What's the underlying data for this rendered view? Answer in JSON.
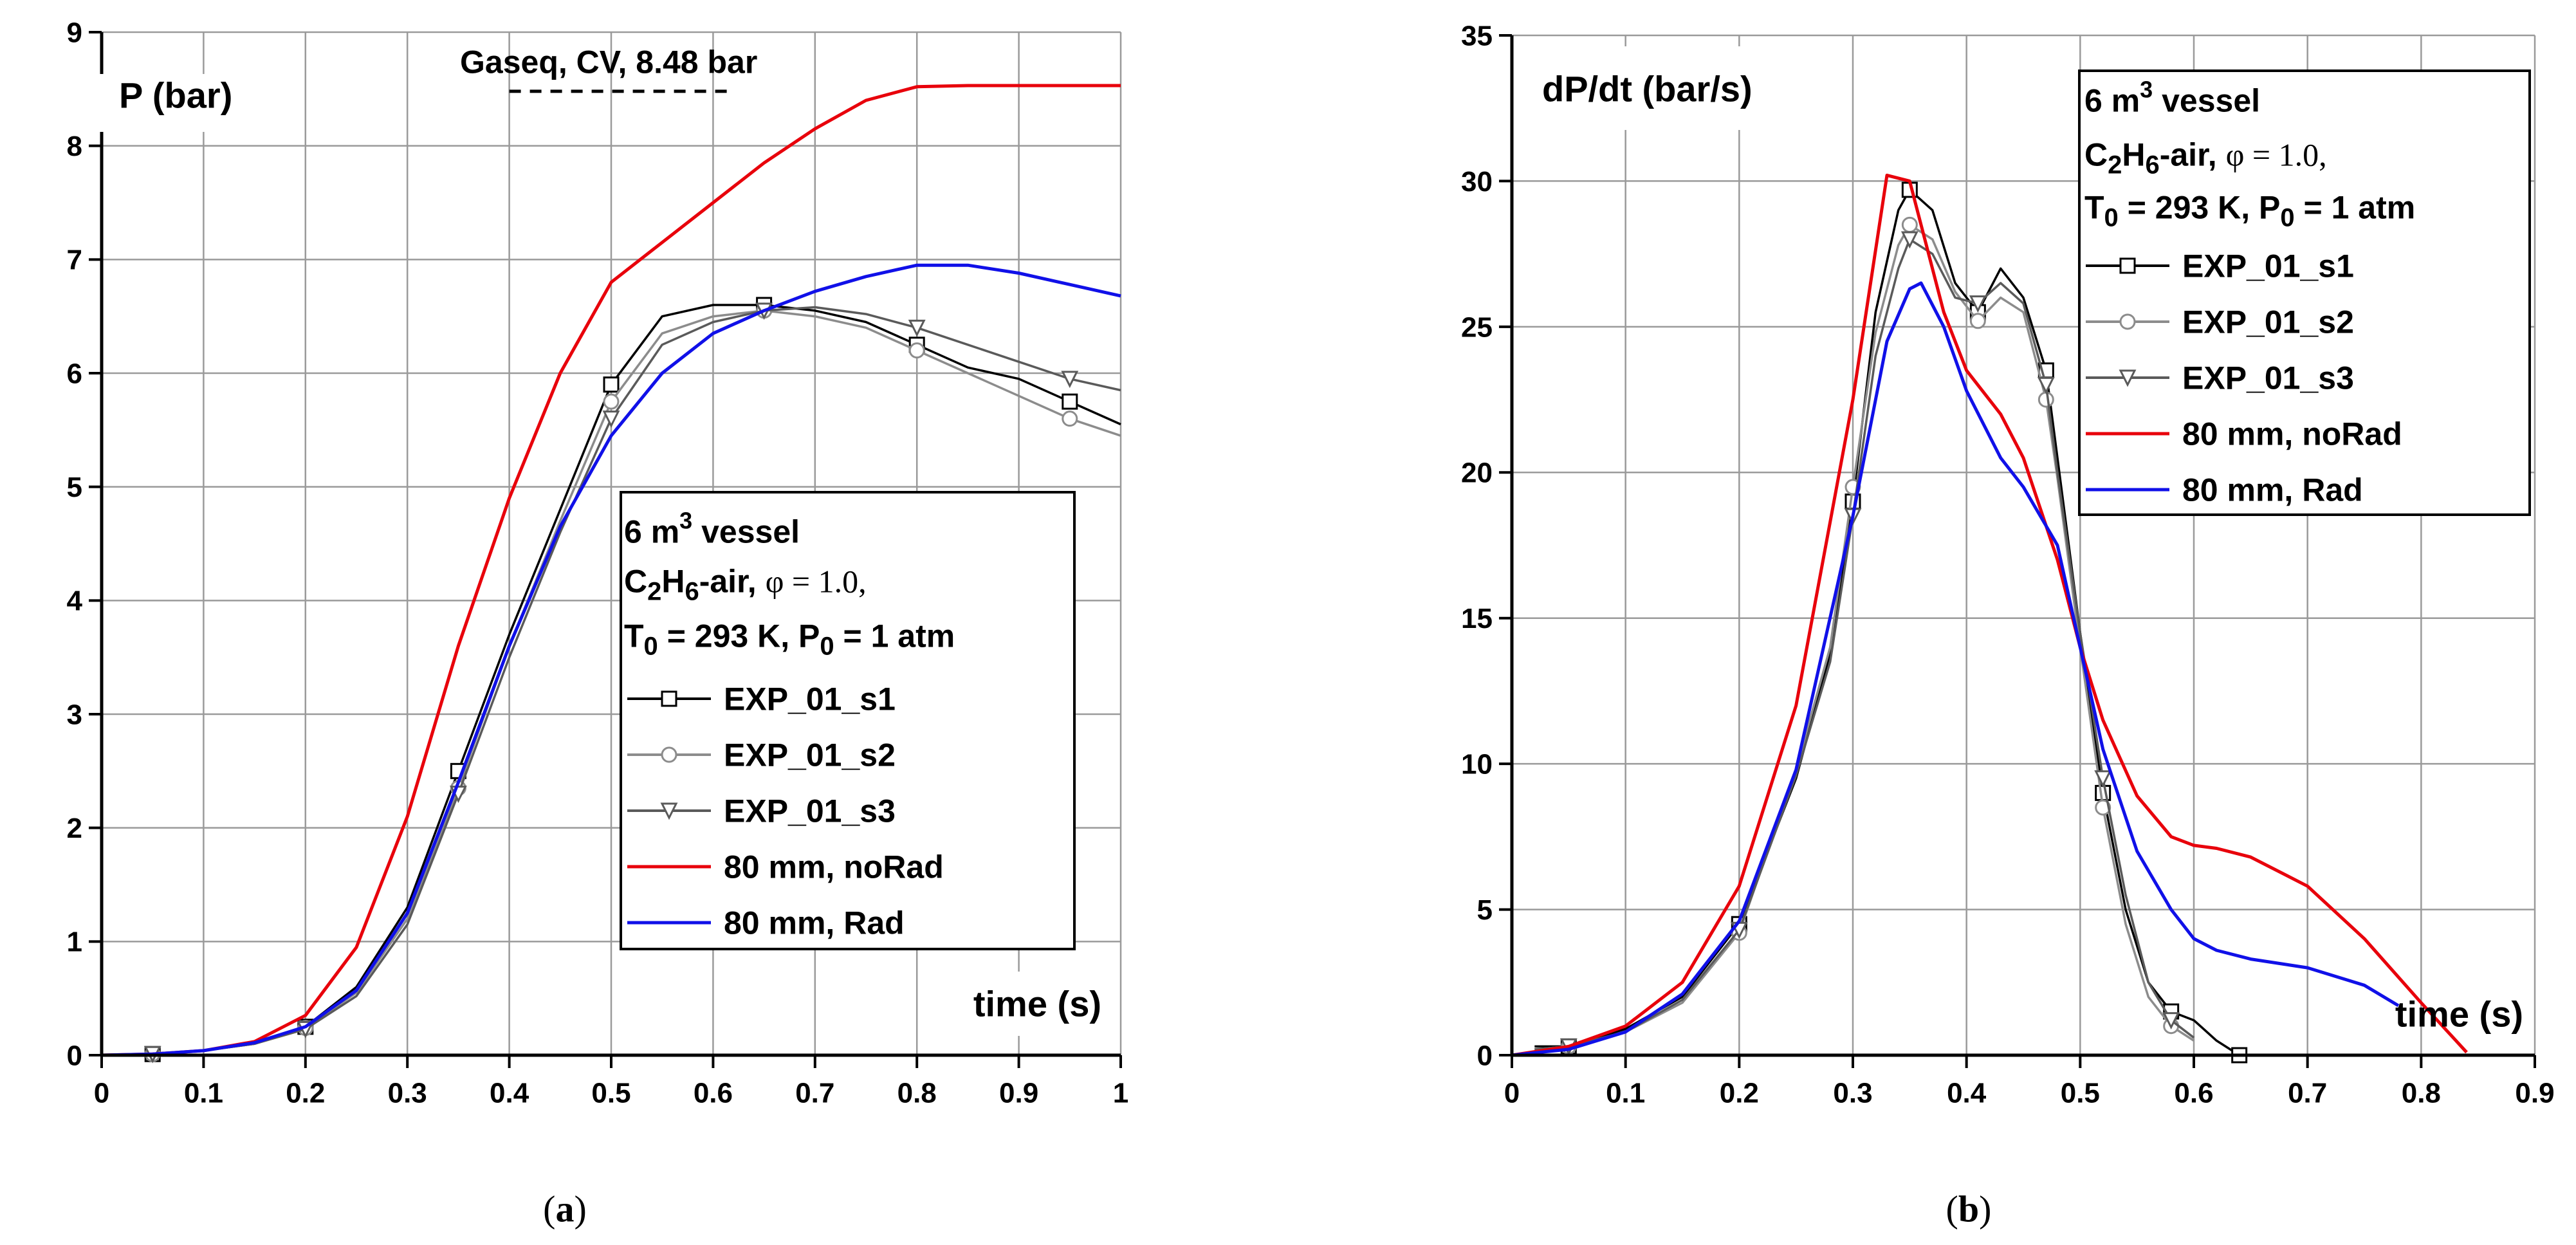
{
  "chart_data": [
    {
      "id": "a",
      "type": "line",
      "caption": "a",
      "ylabel": "P (bar)",
      "xlabel": "time (s)",
      "xlim": [
        0,
        1
      ],
      "ylim": [
        0,
        9
      ],
      "xticks": [
        0,
        0.1,
        0.2,
        0.3,
        0.4,
        0.5,
        0.6,
        0.7,
        0.8,
        0.9,
        1
      ],
      "xtick_labels": [
        "0",
        "0.1",
        "0.2",
        "0.3",
        "0.4",
        "0.5",
        "0.6",
        "0.7",
        "0.8",
        "0.9",
        "1"
      ],
      "yticks": [
        0,
        1,
        2,
        3,
        4,
        5,
        6,
        7,
        8,
        9
      ],
      "ytick_labels": [
        "0",
        "1",
        "2",
        "3",
        "4",
        "5",
        "6",
        "7",
        "8",
        "9"
      ],
      "annotation": {
        "text": "Gaseq, CV, 8.48 bar",
        "value": 8.48,
        "x_range": [
          0.4,
          0.62
        ]
      },
      "legend_header": {
        "line1": {
          "pre": "6 m",
          "sup": "3",
          "post": " vessel"
        },
        "line2": {
          "pre": "C",
          "sub1": "2",
          "mid": "H",
          "sub2": "6",
          "post": "-air, ",
          "phi": "φ = 1.0,"
        },
        "line3": {
          "a": "T",
          "sub_a": "0",
          "b": " = 293 K, P",
          "sub_b": "0",
          "c": " = 1 atm"
        }
      },
      "series": [
        {
          "name": "EXP_01_s1",
          "color": "#000000",
          "marker": "square",
          "x": [
            0,
            0.05,
            0.1,
            0.15,
            0.2,
            0.25,
            0.3,
            0.35,
            0.4,
            0.45,
            0.5,
            0.55,
            0.6,
            0.65,
            0.7,
            0.75,
            0.8,
            0.85,
            0.9,
            0.95,
            1.0
          ],
          "y": [
            0,
            0.01,
            0.04,
            0.1,
            0.25,
            0.6,
            1.3,
            2.5,
            3.7,
            4.8,
            5.9,
            6.5,
            6.6,
            6.6,
            6.55,
            6.45,
            6.25,
            6.05,
            5.95,
            5.75,
            5.55
          ]
        },
        {
          "name": "EXP_01_s2",
          "color": "#8c8c8c",
          "marker": "circle",
          "x": [
            0,
            0.05,
            0.1,
            0.15,
            0.2,
            0.25,
            0.3,
            0.35,
            0.4,
            0.45,
            0.5,
            0.55,
            0.6,
            0.65,
            0.7,
            0.75,
            0.8,
            0.85,
            0.9,
            0.95,
            1.0
          ],
          "y": [
            0,
            0.01,
            0.04,
            0.1,
            0.24,
            0.55,
            1.2,
            2.35,
            3.6,
            4.7,
            5.75,
            6.35,
            6.5,
            6.55,
            6.5,
            6.4,
            6.2,
            6.0,
            5.8,
            5.6,
            5.45
          ]
        },
        {
          "name": "EXP_01_s3",
          "color": "#5a5a5a",
          "marker": "triangle",
          "x": [
            0,
            0.05,
            0.1,
            0.15,
            0.2,
            0.25,
            0.3,
            0.35,
            0.4,
            0.45,
            0.5,
            0.55,
            0.6,
            0.65,
            0.7,
            0.75,
            0.8,
            0.85,
            0.9,
            0.95,
            1.0
          ],
          "y": [
            0,
            0.01,
            0.04,
            0.1,
            0.23,
            0.52,
            1.15,
            2.3,
            3.5,
            4.6,
            5.6,
            6.25,
            6.45,
            6.55,
            6.58,
            6.52,
            6.4,
            6.25,
            6.1,
            5.95,
            5.85
          ]
        },
        {
          "name": "80 mm, noRad",
          "color": "#e8000b",
          "marker": "none",
          "x": [
            0,
            0.05,
            0.1,
            0.15,
            0.2,
            0.25,
            0.3,
            0.35,
            0.4,
            0.45,
            0.5,
            0.55,
            0.6,
            0.65,
            0.7,
            0.75,
            0.8,
            0.85,
            0.9,
            0.95,
            1.0
          ],
          "y": [
            0,
            0.01,
            0.04,
            0.12,
            0.35,
            0.95,
            2.1,
            3.6,
            4.9,
            6.0,
            6.8,
            7.15,
            7.5,
            7.85,
            8.15,
            8.4,
            8.52,
            8.53,
            8.53,
            8.53,
            8.53
          ]
        },
        {
          "name": "80 mm, Rad",
          "color": "#1010e8",
          "marker": "none",
          "x": [
            0,
            0.05,
            0.1,
            0.15,
            0.2,
            0.25,
            0.3,
            0.35,
            0.4,
            0.45,
            0.5,
            0.55,
            0.6,
            0.65,
            0.7,
            0.75,
            0.8,
            0.85,
            0.9,
            0.95,
            1.0
          ],
          "y": [
            0,
            0.01,
            0.04,
            0.11,
            0.25,
            0.57,
            1.25,
            2.4,
            3.6,
            4.65,
            5.45,
            6.0,
            6.35,
            6.55,
            6.72,
            6.85,
            6.95,
            6.95,
            6.88,
            6.78,
            6.68
          ]
        }
      ]
    },
    {
      "id": "b",
      "type": "line",
      "caption": "b",
      "ylabel": "dP/dt (bar/s)",
      "xlabel": "time (s)",
      "xlim": [
        0,
        0.9
      ],
      "ylim": [
        0,
        35
      ],
      "xticks": [
        0,
        0.1,
        0.2,
        0.3,
        0.4,
        0.5,
        0.6,
        0.7,
        0.8,
        0.9
      ],
      "xtick_labels": [
        "0",
        "0.1",
        "0.2",
        "0.3",
        "0.4",
        "0.5",
        "0.6",
        "0.7",
        "0.8",
        "0.9"
      ],
      "yticks": [
        0,
        5,
        10,
        15,
        20,
        25,
        30,
        35
      ],
      "ytick_labels": [
        "0",
        "5",
        "10",
        "15",
        "20",
        "25",
        "30",
        "35"
      ],
      "legend_header": {
        "line1": {
          "pre": "6 m",
          "sup": "3",
          "post": " vessel"
        },
        "line2": {
          "pre": "C",
          "sub1": "2",
          "mid": "H",
          "sub2": "6",
          "post": "-air, ",
          "phi": "φ = 1.0,"
        },
        "line3": {
          "a": "T",
          "sub_a": "0",
          "b": " = 293 K, P",
          "sub_b": "0",
          "c": " = 1 atm"
        }
      },
      "series": [
        {
          "name": "EXP_01_s1",
          "color": "#000000",
          "marker": "square",
          "x": [
            0.02,
            0.05,
            0.1,
            0.15,
            0.2,
            0.25,
            0.28,
            0.3,
            0.32,
            0.34,
            0.35,
            0.37,
            0.39,
            0.41,
            0.43,
            0.45,
            0.47,
            0.48,
            0.5,
            0.52,
            0.54,
            0.56,
            0.58,
            0.6,
            0.62,
            0.64
          ],
          "y": [
            0.3,
            0.3,
            0.9,
            2.0,
            4.5,
            9.5,
            13.8,
            19.0,
            25.5,
            29.0,
            29.7,
            29.0,
            26.5,
            25.5,
            27.0,
            26.0,
            23.5,
            20.5,
            14.5,
            9.0,
            5.0,
            2.5,
            1.5,
            1.2,
            0.5,
            0.0
          ]
        },
        {
          "name": "EXP_01_s2",
          "color": "#8c8c8c",
          "marker": "circle",
          "x": [
            0.02,
            0.05,
            0.1,
            0.15,
            0.2,
            0.25,
            0.28,
            0.3,
            0.32,
            0.34,
            0.35,
            0.37,
            0.39,
            0.41,
            0.43,
            0.45,
            0.47,
            0.48,
            0.5,
            0.52,
            0.54,
            0.56,
            0.58,
            0.6
          ],
          "y": [
            0.2,
            0.3,
            0.8,
            1.8,
            4.2,
            9.8,
            14.0,
            19.5,
            24.8,
            27.8,
            28.5,
            28.0,
            26.2,
            25.2,
            26.0,
            25.5,
            22.5,
            19.8,
            14.0,
            8.5,
            4.5,
            2.0,
            1.0,
            0.5
          ]
        },
        {
          "name": "EXP_01_s3",
          "color": "#5a5a5a",
          "marker": "triangle",
          "x": [
            0.02,
            0.05,
            0.1,
            0.15,
            0.2,
            0.25,
            0.28,
            0.3,
            0.32,
            0.34,
            0.35,
            0.37,
            0.39,
            0.41,
            0.43,
            0.45,
            0.47,
            0.48,
            0.5,
            0.52,
            0.54,
            0.56,
            0.58,
            0.6
          ],
          "y": [
            0.2,
            0.3,
            0.8,
            1.9,
            4.3,
            9.6,
            13.5,
            18.5,
            24.0,
            27.0,
            28.0,
            27.5,
            26.0,
            25.8,
            26.5,
            25.8,
            23.0,
            20.0,
            14.5,
            9.5,
            5.5,
            2.5,
            1.2,
            0.6
          ]
        },
        {
          "name": "80 mm, noRad",
          "color": "#e8000b",
          "marker": "none",
          "x": [
            0,
            0.05,
            0.1,
            0.15,
            0.2,
            0.25,
            0.3,
            0.33,
            0.35,
            0.38,
            0.4,
            0.43,
            0.45,
            0.48,
            0.5,
            0.52,
            0.55,
            0.58,
            0.6,
            0.62,
            0.65,
            0.7,
            0.75,
            0.8,
            0.84
          ],
          "y": [
            0,
            0.3,
            1.0,
            2.5,
            5.8,
            12.0,
            22.5,
            30.2,
            30.0,
            25.5,
            23.5,
            22.0,
            20.5,
            17.0,
            14.0,
            11.5,
            8.9,
            7.5,
            7.2,
            7.1,
            6.8,
            5.8,
            4.0,
            1.8,
            0.1
          ]
        },
        {
          "name": "80 mm, Rad",
          "color": "#1010e8",
          "marker": "none",
          "x": [
            0,
            0.05,
            0.1,
            0.15,
            0.2,
            0.25,
            0.3,
            0.33,
            0.35,
            0.36,
            0.38,
            0.4,
            0.43,
            0.45,
            0.48,
            0.5,
            0.52,
            0.55,
            0.58,
            0.6,
            0.62,
            0.65,
            0.7,
            0.75,
            0.78
          ],
          "y": [
            0,
            0.2,
            0.8,
            2.1,
            4.6,
            9.8,
            18.5,
            24.5,
            26.3,
            26.5,
            25.0,
            22.8,
            20.5,
            19.5,
            17.5,
            14.0,
            10.5,
            7.0,
            5.0,
            4.0,
            3.6,
            3.3,
            3.0,
            2.4,
            1.7
          ]
        }
      ]
    }
  ]
}
